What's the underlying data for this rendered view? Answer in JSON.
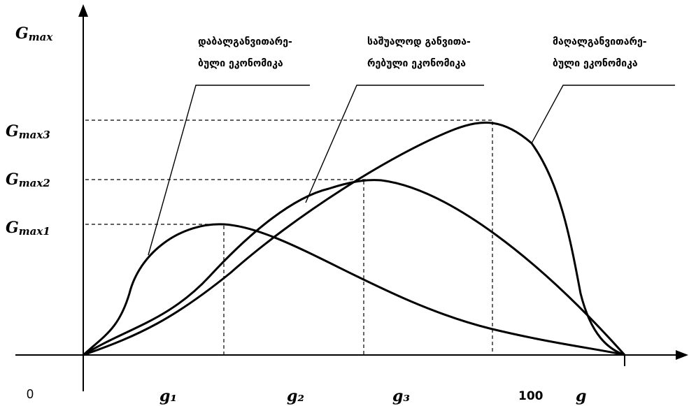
{
  "y_axis_label": {
    "base": "G",
    "sub": "max"
  },
  "level_labels": [
    {
      "base": "G",
      "sub": "max3"
    },
    {
      "base": "G",
      "sub": "max2"
    },
    {
      "base": "G",
      "sub": "max1"
    }
  ],
  "annotations": [
    {
      "line1": "დაბალგანვითარე-",
      "line2": "ბული  ეკონომიკა"
    },
    {
      "line1": "საშუალოდ  განვითა-",
      "line2": "რებული  ეკონომიკა"
    },
    {
      "line1": "მაღალგანვითარე-",
      "line2": "ბული  ეკონომიკა"
    }
  ],
  "x_labels": {
    "origin": "0",
    "g1": "g₁",
    "g2": "g₂",
    "g3": "g₃",
    "hundred": "100",
    "x_axis": "g"
  },
  "colors": {
    "stroke": "#000000",
    "background": "#ffffff"
  }
}
